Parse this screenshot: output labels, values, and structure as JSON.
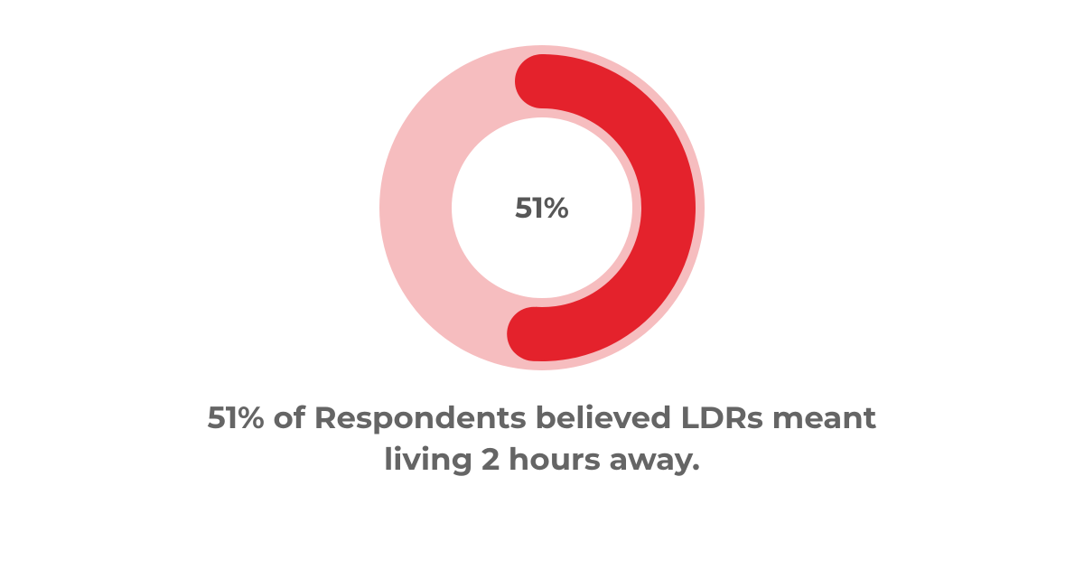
{
  "chart": {
    "type": "donut",
    "percent": 51,
    "percent_label": "51%",
    "track_color": "#f6bdbf",
    "progress_color": "#e4222c",
    "background_color": "#ffffff",
    "center_text_color": "#575757",
    "center_fontsize_pt": 24,
    "outer_radius": 180,
    "ring_thickness": 80,
    "progress_ring_thickness": 60,
    "progress_ring_inset": 10,
    "start_angle_deg": 0,
    "direction": "clockwise"
  },
  "caption": {
    "text": "51% of Respondents believed LDRs meant living 2 hours away.",
    "color": "#656565",
    "fontsize_pt": 26,
    "font_weight": 700
  }
}
